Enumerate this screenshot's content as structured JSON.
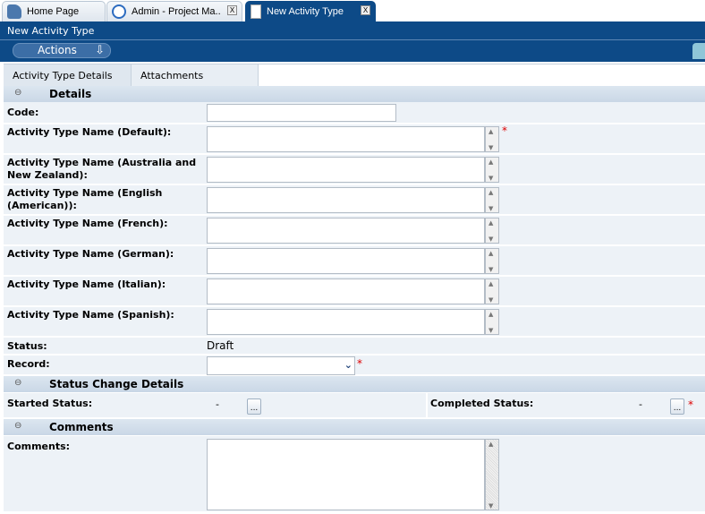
{
  "tabs": [
    {
      "label": "Home Page",
      "icon": "home-icon"
    },
    {
      "label": "Admin - Project Ma..",
      "icon": "gear-icon",
      "close": "X"
    },
    {
      "label": "New Activity Type",
      "icon": "document-icon",
      "close": "X",
      "active": true
    }
  ],
  "title": "New Activity Type",
  "actions_label": "Actions",
  "subtabs": [
    "Activity Type Details",
    "Attachments"
  ],
  "details": {
    "header": "Details",
    "code_label": "Code:",
    "code_value": "",
    "names": [
      "Activity Type Name (Default):",
      "Activity Type Name (Australia and New Zealand):",
      "Activity Type Name (English (American)):",
      "Activity Type Name (French):",
      "Activity Type Name (German):",
      "Activity Type Name (Italian):",
      "Activity Type Name (Spanish):"
    ],
    "status_label": "Status:",
    "status_value": "Draft",
    "record_label": "Record:",
    "record_value": ""
  },
  "status_change": {
    "header": "Status Change Details",
    "started_label": "Started Status:",
    "started_value": "-",
    "completed_label": "Completed Status:",
    "completed_value": "-",
    "ellipsis": "..."
  },
  "comments": {
    "header": "Comments",
    "label": "Comments:",
    "value": ""
  },
  "required_mark": "*",
  "collapse_glyph": "⊖"
}
